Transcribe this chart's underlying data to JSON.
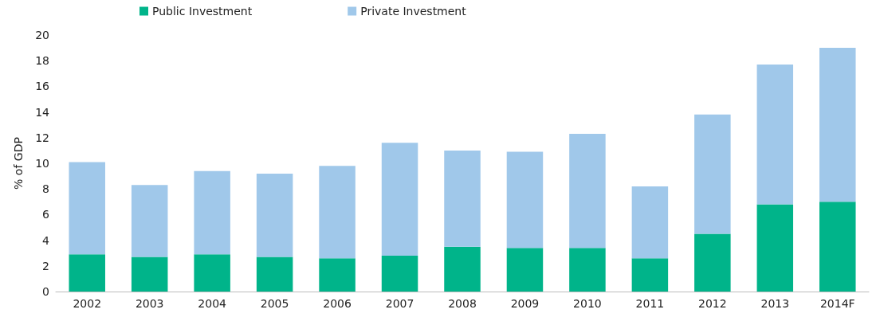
{
  "chart_data": {
    "type": "bar",
    "stacked": true,
    "ylabel": "% of GDP",
    "categories": [
      "2002",
      "2003",
      "2004",
      "2005",
      "2006",
      "2007",
      "2008",
      "2009",
      "2010",
      "2011",
      "2012",
      "2013",
      "2014F"
    ],
    "series": [
      {
        "name": "Public Investment",
        "color": "#00b48a",
        "values": [
          2.9,
          2.7,
          2.9,
          2.7,
          2.6,
          2.8,
          3.5,
          3.4,
          3.4,
          2.6,
          4.5,
          6.8,
          7.0
        ]
      },
      {
        "name": "Private Investment",
        "color": "#a0c8ea",
        "values": [
          7.2,
          5.6,
          6.5,
          6.5,
          7.2,
          8.8,
          7.5,
          7.5,
          8.9,
          5.6,
          9.3,
          10.9,
          12.0
        ]
      }
    ],
    "ylim": [
      0,
      20
    ],
    "yticks": [
      0,
      2,
      4,
      6,
      8,
      10,
      12,
      14,
      16,
      18,
      20
    ],
    "grid": false,
    "legend": "top left"
  }
}
